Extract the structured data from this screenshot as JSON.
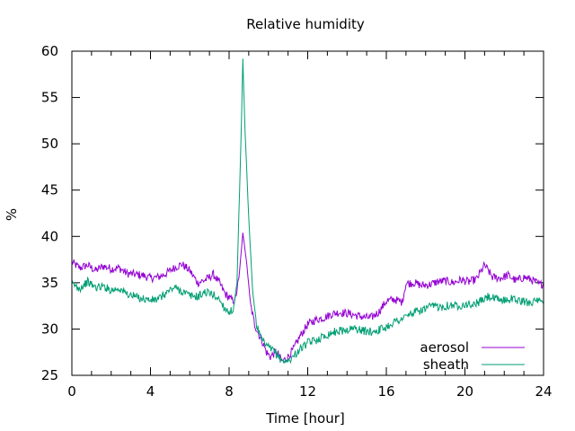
{
  "chart_data": {
    "type": "line",
    "title": "Relative humidity",
    "xlabel": "Time [hour]",
    "ylabel": "%",
    "xlim": [
      0,
      24
    ],
    "ylim": [
      25,
      60
    ],
    "x_ticks": [
      0,
      4,
      8,
      12,
      16,
      20,
      24
    ],
    "y_ticks": [
      25,
      30,
      35,
      40,
      45,
      50,
      55,
      60
    ],
    "grid": false,
    "legend_position": "bottom-right",
    "series": [
      {
        "name": "aerosol",
        "color": "#9400d3",
        "points": [
          [
            0.0,
            37.2
          ],
          [
            0.4,
            36.6
          ],
          [
            0.8,
            36.9
          ],
          [
            1.2,
            36.3
          ],
          [
            1.6,
            36.8
          ],
          [
            2.0,
            36.5
          ],
          [
            2.4,
            36.6
          ],
          [
            2.8,
            36.0
          ],
          [
            3.2,
            35.9
          ],
          [
            3.6,
            35.8
          ],
          [
            4.0,
            35.5
          ],
          [
            4.4,
            35.6
          ],
          [
            4.8,
            36.0
          ],
          [
            5.2,
            36.6
          ],
          [
            5.6,
            37.0
          ],
          [
            6.0,
            36.3
          ],
          [
            6.4,
            35.0
          ],
          [
            6.8,
            35.3
          ],
          [
            7.2,
            35.9
          ],
          [
            7.5,
            35.0
          ],
          [
            7.8,
            33.8
          ],
          [
            8.1,
            33.2
          ],
          [
            8.3,
            33.0
          ],
          [
            8.5,
            35.5
          ],
          [
            8.7,
            40.4
          ],
          [
            8.9,
            37.0
          ],
          [
            9.1,
            32.5
          ],
          [
            9.3,
            30.5
          ],
          [
            9.5,
            29.5
          ],
          [
            9.7,
            28.6
          ],
          [
            9.9,
            27.5
          ],
          [
            10.1,
            27.0
          ],
          [
            10.4,
            27.6
          ],
          [
            10.7,
            26.5
          ],
          [
            11.0,
            27.0
          ],
          [
            11.3,
            27.9
          ],
          [
            11.6,
            29.2
          ],
          [
            12.0,
            30.5
          ],
          [
            12.4,
            31.0
          ],
          [
            12.8,
            31.2
          ],
          [
            13.2,
            31.6
          ],
          [
            13.6,
            31.8
          ],
          [
            14.0,
            31.7
          ],
          [
            14.4,
            31.5
          ],
          [
            14.8,
            31.3
          ],
          [
            15.2,
            31.2
          ],
          [
            15.6,
            31.8
          ],
          [
            16.0,
            33.0
          ],
          [
            16.4,
            33.2
          ],
          [
            16.8,
            32.9
          ],
          [
            17.0,
            34.9
          ],
          [
            17.4,
            35.0
          ],
          [
            17.8,
            34.7
          ],
          [
            18.2,
            34.8
          ],
          [
            18.6,
            35.1
          ],
          [
            19.0,
            35.2
          ],
          [
            19.4,
            35.0
          ],
          [
            19.8,
            35.3
          ],
          [
            20.2,
            35.1
          ],
          [
            20.6,
            35.4
          ],
          [
            21.0,
            36.9
          ],
          [
            21.4,
            35.6
          ],
          [
            21.8,
            35.5
          ],
          [
            22.2,
            35.8
          ],
          [
            22.6,
            35.2
          ],
          [
            23.0,
            35.6
          ],
          [
            23.4,
            35.3
          ],
          [
            23.8,
            34.8
          ],
          [
            24.0,
            34.9
          ]
        ]
      },
      {
        "name": "sheath",
        "color": "#009e73",
        "points": [
          [
            0.0,
            34.9
          ],
          [
            0.4,
            34.4
          ],
          [
            0.8,
            35.1
          ],
          [
            1.2,
            34.5
          ],
          [
            1.6,
            34.6
          ],
          [
            2.0,
            34.2
          ],
          [
            2.4,
            34.4
          ],
          [
            2.8,
            33.8
          ],
          [
            3.2,
            33.5
          ],
          [
            3.6,
            33.3
          ],
          [
            4.0,
            33.1
          ],
          [
            4.4,
            33.2
          ],
          [
            4.8,
            33.9
          ],
          [
            5.2,
            34.5
          ],
          [
            5.6,
            34.1
          ],
          [
            6.0,
            33.6
          ],
          [
            6.4,
            33.5
          ],
          [
            6.8,
            34.0
          ],
          [
            7.2,
            33.7
          ],
          [
            7.5,
            33.2
          ],
          [
            7.8,
            32.2
          ],
          [
            8.0,
            31.9
          ],
          [
            8.2,
            31.9
          ],
          [
            8.4,
            35.0
          ],
          [
            8.6,
            50.0
          ],
          [
            8.7,
            59.2
          ],
          [
            8.8,
            52.0
          ],
          [
            9.0,
            42.0
          ],
          [
            9.2,
            34.0
          ],
          [
            9.4,
            30.5
          ],
          [
            9.6,
            29.0
          ],
          [
            9.8,
            28.4
          ],
          [
            10.0,
            28.0
          ],
          [
            10.3,
            27.6
          ],
          [
            10.6,
            26.8
          ],
          [
            10.9,
            26.4
          ],
          [
            11.2,
            26.9
          ],
          [
            11.6,
            27.8
          ],
          [
            12.0,
            28.5
          ],
          [
            12.4,
            28.8
          ],
          [
            12.8,
            29.2
          ],
          [
            13.2,
            29.6
          ],
          [
            13.6,
            29.8
          ],
          [
            14.0,
            29.9
          ],
          [
            14.4,
            30.1
          ],
          [
            14.8,
            29.8
          ],
          [
            15.2,
            29.7
          ],
          [
            15.6,
            29.9
          ],
          [
            16.0,
            30.2
          ],
          [
            16.4,
            30.8
          ],
          [
            16.8,
            31.1
          ],
          [
            17.2,
            31.6
          ],
          [
            17.6,
            31.9
          ],
          [
            18.0,
            32.2
          ],
          [
            18.4,
            32.5
          ],
          [
            18.8,
            32.4
          ],
          [
            19.2,
            32.6
          ],
          [
            19.6,
            32.5
          ],
          [
            20.0,
            32.7
          ],
          [
            20.4,
            32.6
          ],
          [
            20.8,
            33.0
          ],
          [
            21.2,
            33.5
          ],
          [
            21.6,
            33.2
          ],
          [
            22.0,
            33.1
          ],
          [
            22.4,
            33.3
          ],
          [
            22.8,
            33.0
          ],
          [
            23.2,
            32.9
          ],
          [
            23.6,
            33.0
          ],
          [
            24.0,
            32.8
          ]
        ]
      }
    ]
  }
}
